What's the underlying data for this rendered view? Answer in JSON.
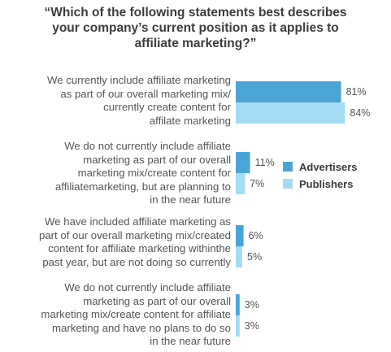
{
  "chart_data": {
    "type": "bar",
    "orientation": "horizontal",
    "title": "“Which of the following statements best describes\nyour company’s current position as it applies to\naffiliate marketing?”",
    "categories": [
      "We currently include affiliate marketing\nas part of our overall marketing mix/\ncurrently create content for\naffilate marketing",
      "We do not currently include affiliate\nmarketing as part of our overall\nmarketing mix/create content for\naffiliatemarketing, but are planning to\nin the near future",
      "We have included affiliate marketing as\npart of our overall marketing mix/created\ncontent for affiliate marketing withinthe\npast year, but are not doing so currently",
      "We do not currently include affiliate\nmarketing as part of our overall\nmarketing mix/create content for affiliate\nmarketing and have no plans to do so\nin the near future"
    ],
    "series": [
      {
        "name": "Advertisers",
        "color": "#4aa5d6",
        "values": [
          81,
          11,
          6,
          3
        ],
        "labels": [
          "81%",
          "11%",
          "6%",
          "3%"
        ]
      },
      {
        "name": "Publishers",
        "color": "#a5dcf5",
        "values": [
          84,
          7,
          5,
          3
        ],
        "labels": [
          "84%",
          "7%",
          "5%",
          "3%"
        ]
      }
    ],
    "xlim": [
      0,
      100
    ],
    "unit": "%",
    "legend_position": "right",
    "grid": false
  }
}
